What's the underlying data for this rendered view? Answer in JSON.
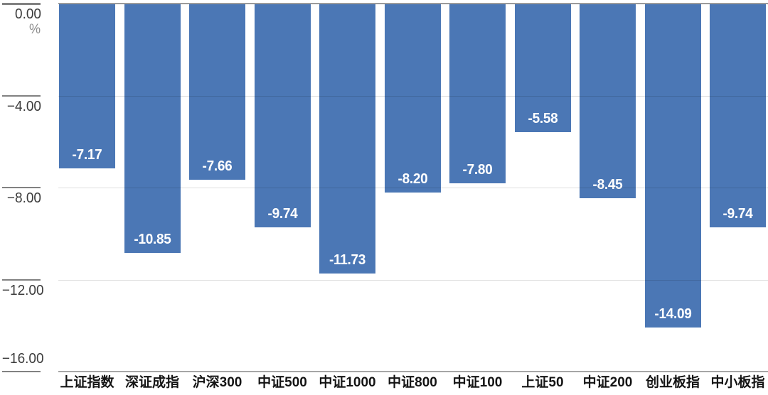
{
  "chart_data": {
    "type": "bar",
    "title": "",
    "xlabel": "",
    "ylabel": "%",
    "unit_label": "%",
    "categories": [
      "上证指数",
      "深证成指",
      "沪深300",
      "中证500",
      "中证1000",
      "中证800",
      "中证100",
      "上证50",
      "中证200",
      "创业板指",
      "中小板指"
    ],
    "values": [
      -7.17,
      -10.85,
      -7.66,
      -9.74,
      -11.73,
      -8.2,
      -7.8,
      -5.58,
      -8.45,
      -14.09,
      -9.74
    ],
    "value_labels": [
      "-7.17",
      "-10.85",
      "-7.66",
      "-9.74",
      "-11.73",
      "-8.20",
      "-7.80",
      "-5.58",
      "-8.45",
      "-14.09",
      "-9.74"
    ],
    "ylim": [
      -16,
      0
    ],
    "yticks": [
      0,
      -4,
      -8,
      -12,
      -16
    ],
    "ytick_labels": [
      "0.00",
      "−4.00",
      "−8.00",
      "−12.00",
      "−16.00"
    ],
    "grid": true,
    "legend_position": "none",
    "bar_color": "#4b77b5",
    "value_label_color": "#ffffff",
    "gridline_color": "rgba(0,0,0,0.13)",
    "top_axis_color": "#9a9a9a",
    "baseline_color": "#a6a6a6",
    "tick_stub_color": "#818181",
    "tick_label_color": "#3d3d3d",
    "unit_label_color": "#8c8c8c",
    "category_label_color": "#141414"
  }
}
